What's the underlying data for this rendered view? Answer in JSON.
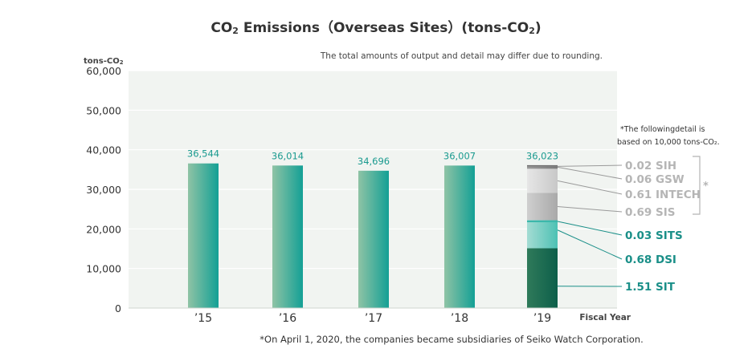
{
  "chart_data": {
    "type": "bar",
    "title_main": "CO",
    "title_sub": "2",
    "title_rest": " Emissions（Overseas Sites）(tons-CO",
    "title_sub2": "2",
    "title_end": ")",
    "note": "The total amounts of output and detail may differ due to rounding.",
    "ylabel_main": "tons-CO",
    "ylabel_sub": "2",
    "xlabel": "Fiscal Year",
    "yticks": [
      "0",
      "10,000",
      "20,000",
      "30,000",
      "40,000",
      "50,000",
      "60,000"
    ],
    "ylim": [
      0,
      60000
    ],
    "categories": [
      "’15",
      "’16",
      "’17",
      "’18",
      "’19"
    ],
    "values": [
      36544,
      36014,
      34696,
      36007,
      36023
    ],
    "value_labels": [
      "36,544",
      "36,014",
      "34,696",
      "36,007",
      "36,023"
    ],
    "breakdown_note_line1": "*The followingdetail is",
    "breakdown_note_line2": "based on 10,000 tons-CO₂.",
    "breakdown": [
      {
        "label": "0.02 SIH",
        "value": 0.02,
        "group": "gray"
      },
      {
        "label": "0.06 GSW",
        "value": 0.06,
        "group": "gray"
      },
      {
        "label": "0.61 INTECH",
        "value": 0.61,
        "group": "gray"
      },
      {
        "label": "0.69 SIS",
        "value": 0.69,
        "group": "gray"
      },
      {
        "label": "0.03 SITS",
        "value": 0.03,
        "group": "teal"
      },
      {
        "label": "0.68 DSI",
        "value": 0.68,
        "group": "teal"
      },
      {
        "label": "1.51 SIT",
        "value": 1.51,
        "group": "teal"
      }
    ],
    "bracket_mark": "*",
    "footnote": "*On April 1, 2020, the companies became subsidiaries of Seiko Watch Corporation.",
    "colors": {
      "plot_bg": "#f1f4f1",
      "bar_light": "#8fc3a5",
      "bar_dark": "#13a095",
      "value_text": "#1a9a8f",
      "gray_text": "#b5b5b5",
      "teal_text": "#1a8f88"
    }
  }
}
